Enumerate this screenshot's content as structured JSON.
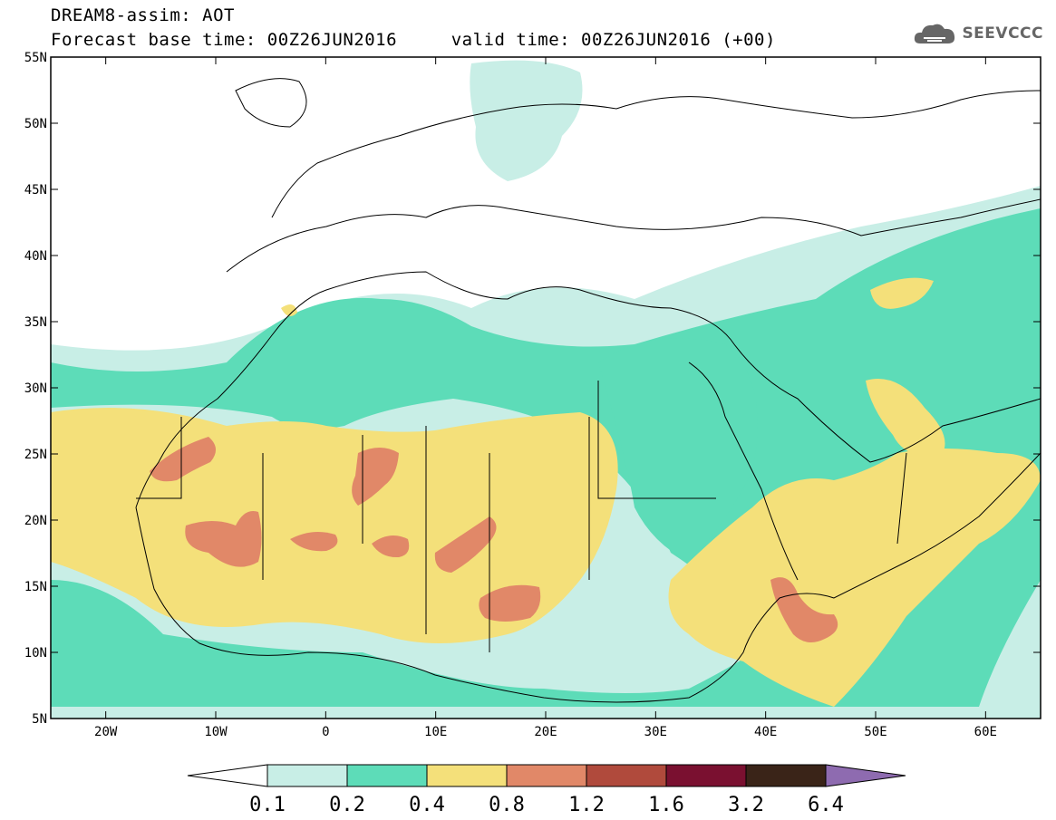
{
  "title": {
    "line1": "DREAM8-assim: AOT",
    "line2": "Forecast base time: 00Z26JUN2016     valid time: 00Z26JUN2016 (+00)"
  },
  "logo": {
    "text": "SEEVCCC",
    "icon": "cloud-icon"
  },
  "map": {
    "lon_labels": [
      "20W",
      "10W",
      "0",
      "10E",
      "20E",
      "30E",
      "40E",
      "50E",
      "60E"
    ],
    "lat_labels": [
      "55N",
      "50N",
      "45N",
      "40N",
      "35N",
      "30N",
      "25N",
      "20N",
      "15N",
      "10N",
      "5N"
    ]
  },
  "colorbar": {
    "labels": [
      "0.1",
      "0.2",
      "0.4",
      "0.8",
      "1.2",
      "1.6",
      "3.2",
      "6.4"
    ],
    "colors": [
      "#ffffff",
      "#c8eee6",
      "#5ddcb8",
      "#f4e07a",
      "#e18868",
      "#b04a3c",
      "#7a1030",
      "#3a2418",
      "#8e6bb0"
    ]
  }
}
